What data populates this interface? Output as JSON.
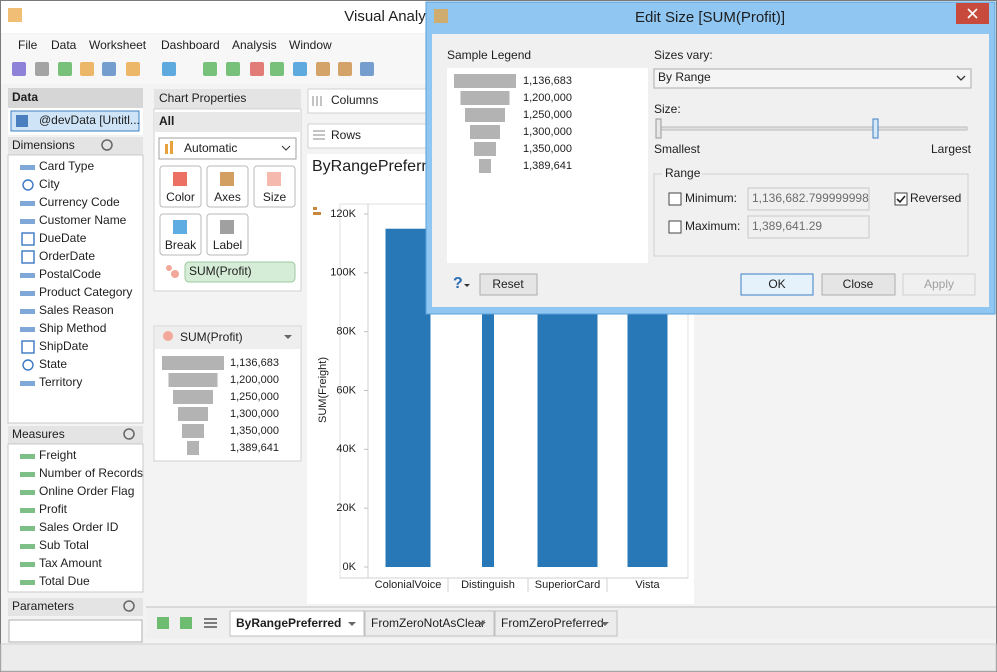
{
  "window": {
    "title": "Visual Analy"
  },
  "menu": [
    "File",
    "Data",
    "Worksheet",
    "Dashboard",
    "Analysis",
    "Window"
  ],
  "data_panel": {
    "header": "Data",
    "source": "@devData [Untitl...",
    "dimensions_header": "Dimensions",
    "dimensions": [
      "Card Type",
      "City",
      "Currency Code",
      "Customer Name",
      "DueDate",
      "OrderDate",
      "PostalCode",
      "Product Category",
      "Sales Reason",
      "Ship Method",
      "ShipDate",
      "State",
      "Territory"
    ],
    "measures_header": "Measures",
    "measures": [
      "Freight",
      "Number of Records",
      "Online Order Flag",
      "Profit",
      "Sales Order ID",
      "Sub Total",
      "Tax Amount",
      "Total Due"
    ],
    "parameters_header": "Parameters"
  },
  "chart_properties": {
    "header": "Chart Properties",
    "all": "All",
    "mark_type": "Automatic",
    "buttons": [
      "Color",
      "Axes",
      "Size",
      "Break",
      "Label"
    ],
    "size_field": "SUM(Profit)"
  },
  "size_legend": {
    "title": "SUM(Profit)",
    "items": [
      "1,136,683",
      "1,200,000",
      "1,250,000",
      "1,300,000",
      "1,350,000",
      "1,389,641"
    ]
  },
  "shelves": {
    "columns": "Columns",
    "rows": "Rows"
  },
  "chart_data": {
    "type": "bar",
    "title": "ByRangePreferred",
    "y_label": "SUM(Freight)",
    "categories": [
      "ColonialVoice",
      "Distinguish",
      "SuperiorCard",
      "Vista"
    ],
    "values": [
      115000,
      95000,
      105000,
      98000
    ],
    "color": "#2878b8",
    "ylim": [
      0,
      120000
    ],
    "yticks": [
      {
        "value": 0,
        "label": "0K"
      },
      {
        "value": 20000,
        "label": "20K"
      },
      {
        "value": 40000,
        "label": "40K"
      },
      {
        "value": 60000,
        "label": "60K"
      },
      {
        "value": 80000,
        "label": "80K"
      },
      {
        "value": 100000,
        "label": "100K"
      },
      {
        "value": 120000,
        "label": "120K"
      }
    ]
  },
  "tabs": [
    "ByRangePreferred",
    "FromZeroNotAsClear",
    "FromZeroPreferred"
  ],
  "dialog": {
    "title": "Edit Size [SUM(Profit)]",
    "sample_legend_label": "Sample Legend",
    "sample_legend": [
      "1,136,683",
      "1,200,000",
      "1,250,000",
      "1,300,000",
      "1,350,000",
      "1,389,641"
    ],
    "sizes_vary_label": "Sizes vary:",
    "sizes_vary": "By Range",
    "size_label": "Size:",
    "smallest": "Smallest",
    "largest": "Largest",
    "range_label": "Range",
    "minimum_label": "Minimum:",
    "minimum": "1,136,682.799999998",
    "reversed_label": "Reversed",
    "maximum_label": "Maximum:",
    "maximum": "1,389,641.29",
    "help": "?",
    "reset": "Reset",
    "ok": "OK",
    "close": "Close",
    "apply": "Apply"
  }
}
